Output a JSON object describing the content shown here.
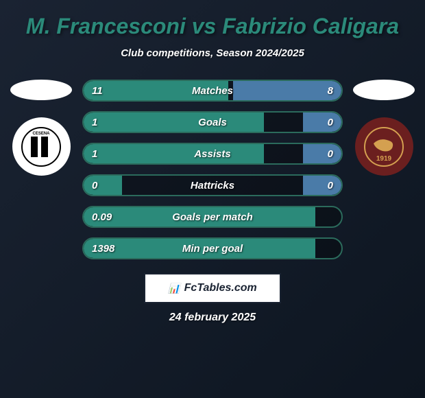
{
  "title": "M. Francesconi vs Fabrizio Caligara",
  "subtitle": "Club competitions, Season 2024/2025",
  "date": "24 february 2025",
  "footer_brand": "FcTables.com",
  "player_left": {
    "club_text": "CESENA"
  },
  "player_right": {
    "club_text": "1919"
  },
  "colors": {
    "bar_left": "#2b8a7a",
    "bar_right": "#4a7ba8",
    "border": "#2b6b5c",
    "title": "#2b8a7a"
  },
  "stats": [
    {
      "label": "Matches",
      "left_value": "11",
      "right_value": "8",
      "left_pct": 56,
      "right_pct": 42
    },
    {
      "label": "Goals",
      "left_value": "1",
      "right_value": "0",
      "left_pct": 70,
      "right_pct": 15
    },
    {
      "label": "Assists",
      "left_value": "1",
      "right_value": "0",
      "left_pct": 70,
      "right_pct": 15
    },
    {
      "label": "Hattricks",
      "left_value": "0",
      "right_value": "0",
      "left_pct": 15,
      "right_pct": 15
    },
    {
      "label": "Goals per match",
      "left_value": "0.09",
      "right_value": "",
      "left_pct": 90,
      "right_pct": 0
    },
    {
      "label": "Min per goal",
      "left_value": "1398",
      "right_value": "",
      "left_pct": 90,
      "right_pct": 0
    }
  ]
}
